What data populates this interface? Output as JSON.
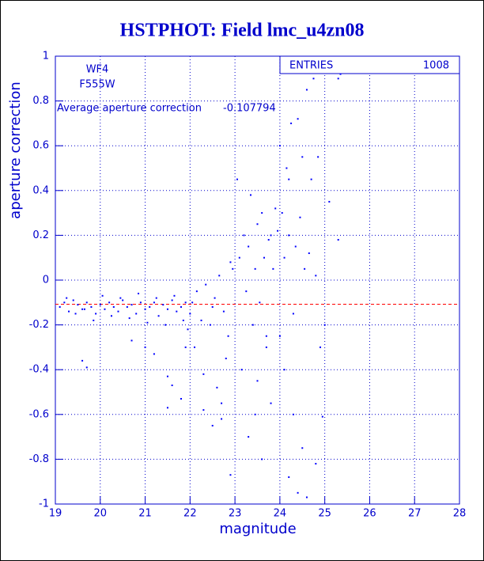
{
  "chart_data": {
    "type": "scatter",
    "title": "HSTPHOT: Field lmc_u4zn08",
    "x_label": "magnitude",
    "y_label": "aperture correction",
    "stats_name": "ENTRIES",
    "entries": 1008,
    "label_line1": "WF4",
    "label_line2": "F555W",
    "average_text": "Average aperture correction",
    "average": -0.107794,
    "average_color": "#ff0000",
    "xlim": [
      19,
      28
    ],
    "ylim": [
      -1,
      1
    ],
    "xticks": [
      19,
      20,
      21,
      22,
      23,
      24,
      25,
      26,
      27,
      28
    ],
    "yticks": [
      -1,
      -0.8,
      -0.6,
      -0.4,
      -0.2,
      0,
      0.2,
      0.4,
      0.6,
      0.8,
      1
    ],
    "grid": true,
    "color": "#0000ff",
    "x": [
      19.1,
      19.2,
      19.3,
      19.4,
      19.5,
      19.6,
      19.7,
      19.8,
      19.9,
      20.0,
      20.1,
      20.2,
      20.3,
      20.4,
      20.5,
      20.6,
      20.7,
      20.8,
      20.9,
      21.0,
      21.1,
      21.2,
      21.3,
      21.4,
      21.5,
      21.6,
      21.7,
      21.8,
      21.9,
      22.0,
      19.25,
      19.45,
      19.65,
      19.85,
      20.05,
      20.25,
      20.45,
      20.65,
      20.85,
      21.05,
      21.25,
      21.45,
      21.65,
      21.85,
      21.95,
      19.7,
      19.6,
      21.0,
      21.5,
      21.6,
      21.8,
      21.5,
      20.7,
      21.2,
      21.9,
      22.05,
      22.15,
      22.25,
      22.35,
      22.45,
      22.55,
      22.65,
      22.75,
      22.85,
      22.95,
      22.1,
      22.3,
      22.5,
      22.7,
      22.9,
      22.3,
      22.5,
      22.7,
      22.9,
      22.6,
      22.8,
      23.05,
      23.1,
      23.2,
      23.25,
      23.3,
      23.35,
      23.4,
      23.45,
      23.5,
      23.55,
      23.6,
      23.65,
      23.7,
      23.75,
      23.8,
      23.85,
      23.9,
      23.95,
      23.15,
      23.45,
      23.6,
      23.8,
      23.3,
      23.5,
      23.7,
      24.0,
      24.05,
      24.1,
      24.15,
      24.2,
      24.25,
      24.3,
      24.35,
      24.4,
      24.45,
      24.5,
      24.55,
      24.6,
      24.65,
      24.7,
      24.75,
      24.8,
      24.85,
      24.9,
      24.95,
      25.0,
      25.1,
      25.3,
      25.35,
      25.3,
      24.1,
      24.3,
      24.5,
      24.2,
      24.4,
      24.6,
      24.8,
      24.0,
      24.2
    ],
    "y": [
      -0.12,
      -0.1,
      -0.14,
      -0.09,
      -0.11,
      -0.13,
      -0.1,
      -0.12,
      -0.15,
      -0.11,
      -0.13,
      -0.1,
      -0.12,
      -0.14,
      -0.09,
      -0.12,
      -0.11,
      -0.15,
      -0.1,
      -0.13,
      -0.12,
      -0.1,
      -0.16,
      -0.11,
      -0.13,
      -0.09,
      -0.14,
      -0.12,
      -0.1,
      -0.15,
      -0.08,
      -0.15,
      -0.13,
      -0.18,
      -0.07,
      -0.16,
      -0.08,
      -0.17,
      -0.06,
      -0.19,
      -0.08,
      -0.2,
      -0.07,
      -0.18,
      -0.22,
      -0.39,
      -0.36,
      -0.3,
      -0.57,
      -0.47,
      -0.53,
      -0.43,
      -0.27,
      -0.33,
      -0.3,
      -0.1,
      -0.05,
      -0.18,
      -0.02,
      -0.2,
      -0.08,
      0.02,
      -0.14,
      -0.25,
      0.05,
      -0.3,
      -0.42,
      -0.12,
      -0.55,
      0.08,
      -0.58,
      -0.65,
      -0.62,
      -0.87,
      -0.48,
      -0.35,
      0.45,
      0.1,
      0.2,
      -0.05,
      0.15,
      0.38,
      -0.2,
      0.05,
      0.25,
      -0.1,
      0.3,
      0.1,
      -0.25,
      0.18,
      0.2,
      0.05,
      0.32,
      0.22,
      -0.4,
      -0.6,
      -0.8,
      -0.55,
      -0.7,
      -0.45,
      -0.3,
      0.6,
      0.3,
      0.1,
      0.5,
      0.2,
      0.7,
      -0.15,
      0.15,
      0.72,
      0.28,
      0.55,
      0.05,
      0.85,
      0.12,
      0.45,
      0.9,
      0.02,
      0.55,
      -0.3,
      -0.61,
      -0.2,
      0.35,
      0.9,
      0.92,
      0.18,
      -0.4,
      -0.6,
      -0.75,
      -0.88,
      -0.95,
      -0.97,
      -0.82,
      -0.25,
      0.45
    ]
  }
}
